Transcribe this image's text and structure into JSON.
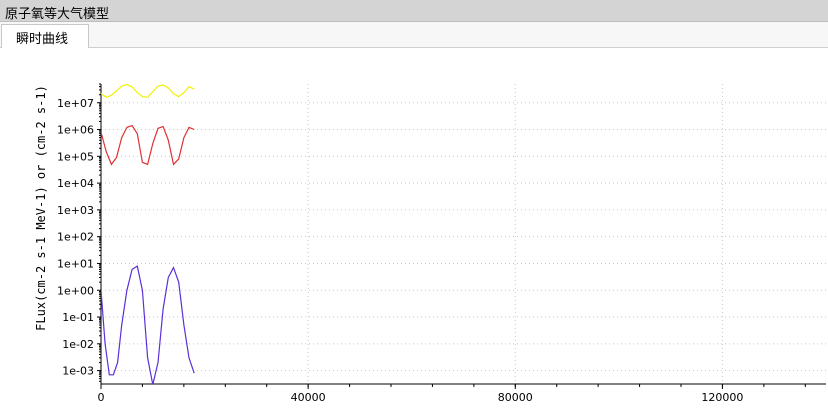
{
  "window": {
    "title": "原子氧等大气模型"
  },
  "tabs": [
    {
      "label": "瞬时曲线"
    }
  ],
  "chart_data": {
    "type": "line",
    "ylabel": "FLux(cm-2 s-1 MeV-1) or (cm-2 s-1)",
    "yscale": "log",
    "xlim": [
      0,
      140000
    ],
    "ylim_exponent": [
      -3.5,
      7.7
    ],
    "x_ticks": [
      "0",
      "40000",
      "80000",
      "120000"
    ],
    "y_ticks": [
      "1e+07",
      "1e+06",
      "1e+05",
      "1e+04",
      "1e+03",
      "1e+02",
      "1e+01",
      "1e+00",
      "1e-01",
      "1e-02",
      "1e-03"
    ],
    "grid": true,
    "series": [
      {
        "color": "#f2f200",
        "x": [
          0,
          1000,
          2000,
          3000,
          4000,
          5000,
          6000,
          7000,
          8000,
          9000,
          10000,
          11000,
          12000,
          13000,
          14000,
          15000,
          16000,
          17000,
          18000
        ],
        "y": [
          22000000.0,
          16000000.0,
          19000000.0,
          28000000.0,
          42000000.0,
          48000000.0,
          39000000.0,
          24000000.0,
          17000000.0,
          16000000.0,
          26000000.0,
          42000000.0,
          46000000.0,
          36000000.0,
          22000000.0,
          17000000.0,
          24000000.0,
          40000000.0,
          32000000.0
        ]
      },
      {
        "color": "#e03030",
        "x": [
          0,
          1000,
          2000,
          3000,
          4000,
          5000,
          6000,
          7000,
          8000,
          9000,
          10000,
          11000,
          12000,
          13000,
          14000,
          15000,
          16000,
          17000,
          18000
        ],
        "y": [
          800000.0,
          150000.0,
          50000.0,
          90000.0,
          500000.0,
          1200000.0,
          1400000.0,
          700000.0,
          60000.0,
          50000.0,
          300000.0,
          1100000.0,
          1300000.0,
          400000.0,
          50000.0,
          80000.0,
          500000.0,
          1200000.0,
          1000000.0
        ]
      },
      {
        "color": "#5a30d8",
        "x": [
          0,
          800,
          1600,
          2400,
          3200,
          4000,
          5000,
          6000,
          7000,
          8000,
          9000,
          10000,
          11000,
          12000,
          13000,
          14000,
          15000,
          16000,
          17000,
          18000
        ],
        "y": [
          1.0,
          0.01,
          0.0007,
          0.0007,
          0.002,
          0.05,
          1.0,
          6.0,
          8.0,
          1.0,
          0.003,
          0.0003,
          0.002,
          0.2,
          3.0,
          7.0,
          2.0,
          0.05,
          0.003,
          0.0008
        ]
      }
    ]
  }
}
